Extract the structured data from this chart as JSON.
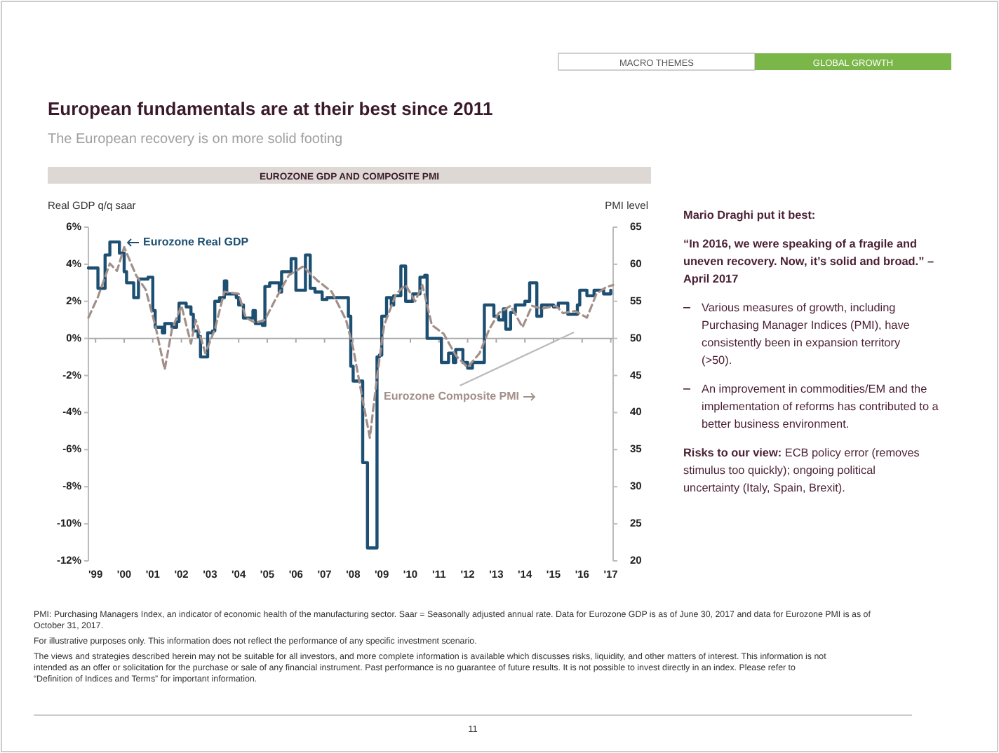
{
  "chart_data": {
    "type": "line",
    "title": "European fundamentals are at their best since 2011",
    "subtitle": "The European recovery is on more solid footing",
    "ylabel": "Real GDP q/q saar",
    "y2label": "PMI level",
    "xlim": [
      "1999-04",
      "2017-08"
    ],
    "xticks": [
      {
        "value": "1999-07",
        "label": "'99"
      },
      {
        "value": "2000-07",
        "label": "'00"
      },
      {
        "value": "2001-07",
        "label": "'01"
      },
      {
        "value": "2002-07",
        "label": "'02"
      },
      {
        "value": "2003-07",
        "label": "'03"
      },
      {
        "value": "2004-07",
        "label": "'04"
      },
      {
        "value": "2005-07",
        "label": "'05"
      },
      {
        "value": "2006-07",
        "label": "'06"
      },
      {
        "value": "2007-07",
        "label": "'07"
      },
      {
        "value": "2008-07",
        "label": "'08"
      },
      {
        "value": "2009-07",
        "label": "'09"
      },
      {
        "value": "2010-07",
        "label": "'10"
      },
      {
        "value": "2011-07",
        "label": "'11"
      },
      {
        "value": "2012-07",
        "label": "'12"
      },
      {
        "value": "2013-07",
        "label": "'13"
      },
      {
        "value": "2014-07",
        "label": "'14"
      },
      {
        "value": "2015-07",
        "label": "'15"
      },
      {
        "value": "2016-07",
        "label": "'16"
      },
      {
        "value": "2017-07",
        "label": "'17"
      }
    ],
    "ylim": [
      -12,
      6
    ],
    "yticks": [
      {
        "value": -12,
        "label": "-12%"
      },
      {
        "value": -10,
        "label": "-10%"
      },
      {
        "value": -8,
        "label": "-8%"
      },
      {
        "value": -6,
        "label": "-6%"
      },
      {
        "value": -4,
        "label": "-4%"
      },
      {
        "value": -2,
        "label": "-2%"
      },
      {
        "value": 0,
        "label": "0%"
      },
      {
        "value": 2,
        "label": "2%"
      },
      {
        "value": 4,
        "label": "4%"
      },
      {
        "value": 6,
        "label": "6%"
      }
    ],
    "y2lim": [
      20,
      65
    ],
    "y2ticks": [
      20,
      25,
      30,
      35,
      40,
      45,
      50,
      55,
      60,
      65
    ],
    "ref_lines": [
      {
        "axis": "y",
        "value": 0,
        "color": "#aaaaaa"
      }
    ],
    "series": [
      {
        "name": "Eurozone Real GDP",
        "type": "step",
        "color": "#1d4f72",
        "x": [
          "1999-04",
          "1999-08",
          "1999-11",
          "2000-01",
          "2000-05",
          "2000-07",
          "2000-08",
          "2000-11",
          "2001-01",
          "2001-05",
          "2001-07",
          "2001-08",
          "2001-11",
          "2001-12",
          "2002-03",
          "2002-05",
          "2002-06",
          "2002-09",
          "2002-11",
          "2002-12",
          "2003-02",
          "2003-03",
          "2003-06",
          "2003-08",
          "2003-09",
          "2003-11",
          "2004-01",
          "2004-02",
          "2004-06",
          "2004-07",
          "2004-09",
          "2005-01",
          "2005-02",
          "2005-05",
          "2005-06",
          "2005-08",
          "2005-12",
          "2006-01",
          "2006-05",
          "2006-07",
          "2006-11",
          "2007-01",
          "2007-03",
          "2007-06",
          "2007-08",
          "2008-05",
          "2008-06",
          "2008-07",
          "2008-11",
          "2009-01",
          "2009-05",
          "2009-06",
          "2009-07",
          "2009-09",
          "2009-11",
          "2009-12",
          "2010-03",
          "2010-05",
          "2010-08",
          "2010-11",
          "2011-01",
          "2011-02",
          "2011-06",
          "2011-08",
          "2011-11",
          "2012-01",
          "2012-02",
          "2012-05",
          "2012-07",
          "2012-09",
          "2013-02",
          "2013-06",
          "2013-08",
          "2013-10",
          "2013-11",
          "2014-01",
          "2014-03",
          "2014-07",
          "2014-09",
          "2014-12",
          "2015-02",
          "2015-07",
          "2015-09",
          "2016-01",
          "2016-05",
          "2016-06",
          "2016-09",
          "2016-12",
          "2017-04",
          "2017-07"
        ],
        "values": [
          3.8,
          2.7,
          4.5,
          5.2,
          4.6,
          3.6,
          3.0,
          2.2,
          3.2,
          3.3,
          1.5,
          0.6,
          0.3,
          0.8,
          0.6,
          0.9,
          1.9,
          1.7,
          1.3,
          0.4,
          0.1,
          -1.0,
          0.3,
          0.4,
          2.0,
          2.2,
          3.1,
          2.4,
          2.2,
          1.8,
          1.1,
          1.5,
          0.8,
          0.7,
          2.8,
          3.0,
          2.5,
          3.6,
          4.3,
          2.6,
          4.5,
          2.7,
          2.5,
          2.1,
          2.2,
          1.2,
          -1.5,
          -2.3,
          -6.7,
          -11.3,
          -1.0,
          -0.9,
          1.2,
          2.2,
          1.8,
          2.3,
          3.9,
          2.0,
          2.4,
          3.3,
          3.4,
          0.0,
          0.0,
          -1.3,
          -0.8,
          -1.3,
          -0.6,
          -1.3,
          -1.6,
          -1.3,
          1.8,
          1.2,
          1.0,
          1.6,
          0.5,
          1.4,
          1.8,
          2.0,
          3.0,
          1.2,
          1.8,
          1.7,
          1.9,
          1.3,
          1.8,
          2.6,
          2.3,
          2.6,
          2.4,
          2.6
        ]
      },
      {
        "name": "Eurozone Composite PMI",
        "type": "line",
        "axis": "y2",
        "line_style": "dashed",
        "color": "#a38f89",
        "x": [
          "1999-04",
          "1999-08",
          "2000-01",
          "2000-04",
          "2000-07",
          "2000-12",
          "2001-04",
          "2001-08",
          "2001-12",
          "2002-03",
          "2002-07",
          "2002-11",
          "2003-01",
          "2003-05",
          "2003-09",
          "2004-01",
          "2004-07",
          "2004-10",
          "2005-02",
          "2005-06",
          "2005-10",
          "2006-04",
          "2006-10",
          "2007-04",
          "2007-10",
          "2008-04",
          "2008-07",
          "2008-11",
          "2009-02",
          "2009-05",
          "2009-08",
          "2010-01",
          "2010-05",
          "2010-09",
          "2010-12",
          "2011-04",
          "2011-09",
          "2012-02",
          "2012-07",
          "2012-12",
          "2013-04",
          "2013-08",
          "2014-01",
          "2014-06",
          "2014-10",
          "2015-02",
          "2015-08",
          "2015-11",
          "2016-04",
          "2016-09",
          "2017-01",
          "2017-05",
          "2017-08"
        ],
        "values": [
          52.8,
          55.6,
          60.1,
          59.1,
          62.3,
          58.5,
          56.6,
          51.8,
          45.8,
          51.2,
          54.4,
          49.3,
          52.5,
          48.0,
          51.2,
          56.3,
          56.0,
          52.8,
          52.1,
          52.5,
          55.0,
          58.5,
          59.7,
          57.8,
          56.3,
          52.5,
          48.7,
          41.7,
          36.6,
          44.8,
          51.8,
          56.0,
          57.2,
          55.0,
          57.2,
          51.8,
          50.6,
          47.7,
          46.1,
          48.0,
          51.2,
          53.4,
          54.4,
          51.5,
          54.4,
          54.0,
          54.4,
          53.4,
          53.7,
          52.8,
          56.0,
          56.9,
          57.2
        ]
      }
    ],
    "annotations": [
      "MACRO THEMES",
      "GLOBAL GROWTH",
      "EUROZONE GDP AND COMPOSITE PMI",
      "Mario Draghi put it best:",
      "“In 2016, we were speaking of a fragile and uneven recovery. Now, it’s solid and broad.” – April 2017",
      "Various measures of growth, including Purchasing Manager Indices (PMI), have consistently been in expansion territory (>50).",
      "An improvement in commodities/EM and the implementation of reforms has contributed to a better business environment.",
      "Risks to our view: ECB policy error (removes stimulus too quickly); ongoing political uncertainty (Italy, Spain, Brexit).",
      "PMI: Purchasing Managers Index, an indicator of economic health of the manufacturing sector. Saar = Seasonally adjusted annual rate. Data for Eurozone GDP is as of June 30, 2017 and data for Eurozone PMI is as of October 31, 2017.",
      "For illustrative purposes only. This information does not reflect the performance of any specific investment scenario.",
      "The views and strategies described herein may not be suitable for all investors, and more complete information is available which discusses risks, liquidity, and other matters of interest. This information is not intended as an offer or solicitation for the purchase or sale of any financial instrument. Past performance is no guarantee of future results. It is not possible to invest directly in an index. Please refer to “Definition of Indices and Terms” for important information.",
      "11"
    ]
  }
}
